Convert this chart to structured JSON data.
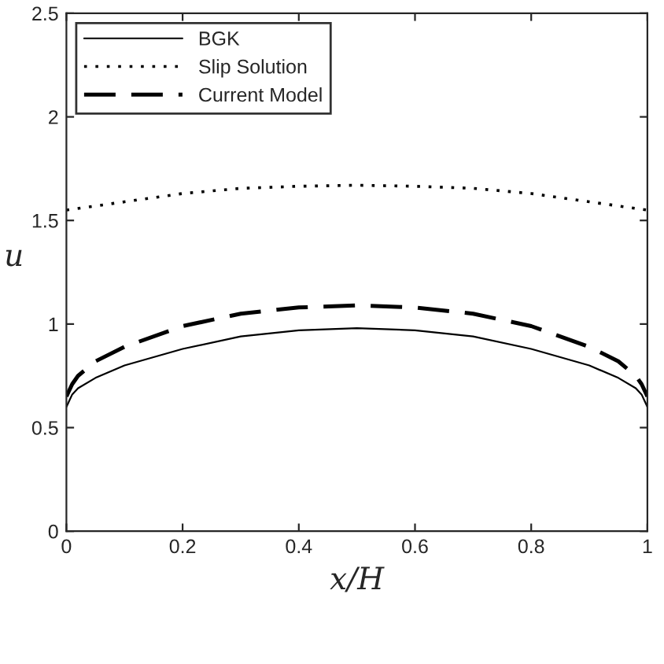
{
  "chart_data": {
    "type": "line",
    "xlabel": "x/H",
    "ylabel": "u",
    "xlim": [
      0,
      1
    ],
    "ylim": [
      0,
      2.5
    ],
    "xticks": [
      0,
      0.2,
      0.4,
      0.6,
      0.8,
      1
    ],
    "yticks": [
      0,
      0.5,
      1,
      1.5,
      2,
      2.5
    ],
    "grid": false,
    "legend": "top left",
    "series": [
      {
        "name": "BGK",
        "color": "#000000",
        "line_style": "solid",
        "x": [
          0,
          0.01,
          0.02,
          0.05,
          0.1,
          0.2,
          0.3,
          0.4,
          0.5,
          0.6,
          0.7,
          0.8,
          0.9,
          0.95,
          0.98,
          0.99,
          1
        ],
        "values": [
          0.6,
          0.66,
          0.69,
          0.74,
          0.8,
          0.88,
          0.94,
          0.97,
          0.98,
          0.97,
          0.94,
          0.88,
          0.8,
          0.74,
          0.69,
          0.66,
          0.6
        ]
      },
      {
        "name": "Slip Solution",
        "color": "#000000",
        "line_style": "dotted",
        "x": [
          0,
          0.1,
          0.2,
          0.3,
          0.4,
          0.5,
          0.6,
          0.7,
          0.8,
          0.9,
          1
        ],
        "values": [
          1.55,
          1.59,
          1.63,
          1.655,
          1.665,
          1.67,
          1.665,
          1.655,
          1.63,
          1.59,
          1.55
        ]
      },
      {
        "name": "Current Model",
        "color": "#000000",
        "line_style": "dashed",
        "x": [
          0,
          0.01,
          0.02,
          0.05,
          0.1,
          0.2,
          0.3,
          0.4,
          0.5,
          0.6,
          0.7,
          0.8,
          0.9,
          0.95,
          0.98,
          0.99,
          1
        ],
        "values": [
          0.65,
          0.71,
          0.75,
          0.82,
          0.89,
          0.99,
          1.05,
          1.08,
          1.09,
          1.08,
          1.05,
          0.99,
          0.89,
          0.82,
          0.75,
          0.71,
          0.65
        ]
      }
    ]
  }
}
